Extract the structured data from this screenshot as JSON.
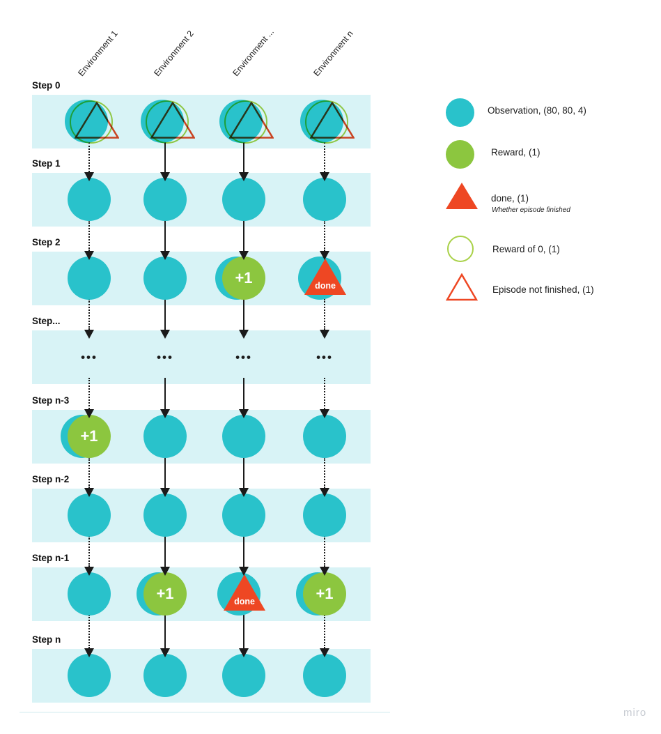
{
  "colors": {
    "teal": "#29C2CB",
    "green": "#8CC63F",
    "red": "#EE4723",
    "ring_green": "#A9D148",
    "band": "#D8F3F6",
    "ink": "#1A1A1A",
    "watermark_gray": "#C6CAD1"
  },
  "diagram": {
    "columns": [
      "Environment 1",
      "Environment 2",
      "Environment ...",
      "Environment n"
    ],
    "rows": [
      {
        "label": "Step 0",
        "nodes": [
          "start",
          "start",
          "start",
          "start"
        ]
      },
      {
        "label": "Step 1",
        "nodes": [
          "obs",
          "obs",
          "obs",
          "obs"
        ]
      },
      {
        "label": "Step 2",
        "nodes": [
          "obs",
          "obs",
          "reward",
          "done"
        ]
      },
      {
        "label": "Step...",
        "nodes": [
          "dots",
          "dots",
          "dots",
          "dots"
        ]
      },
      {
        "label": "Step n-3",
        "nodes": [
          "reward",
          "obs",
          "obs",
          "obs"
        ]
      },
      {
        "label": "Step n-2",
        "nodes": [
          "obs",
          "obs",
          "obs",
          "obs"
        ]
      },
      {
        "label": "Step n-1",
        "nodes": [
          "obs",
          "reward",
          "done",
          "reward"
        ]
      },
      {
        "label": "Step n",
        "nodes": [
          "obs",
          "obs",
          "obs",
          "obs"
        ]
      }
    ],
    "node_labels": {
      "reward": "+1",
      "done": "done",
      "dots": "•••"
    }
  },
  "legend": {
    "items": [
      {
        "icon": "observation-circle",
        "label": "Observation, (80, 80, 4)"
      },
      {
        "icon": "reward-circle",
        "label": "Reward, (1)"
      },
      {
        "icon": "done-triangle",
        "label": "done, (1)",
        "sublabel": "Whether episode finished"
      },
      {
        "icon": "reward-zero-ring",
        "label": "Reward of 0,  (1)"
      },
      {
        "icon": "not-finished-triangle",
        "label": "Episode not finished,  (1)"
      }
    ]
  },
  "watermark": "miro"
}
